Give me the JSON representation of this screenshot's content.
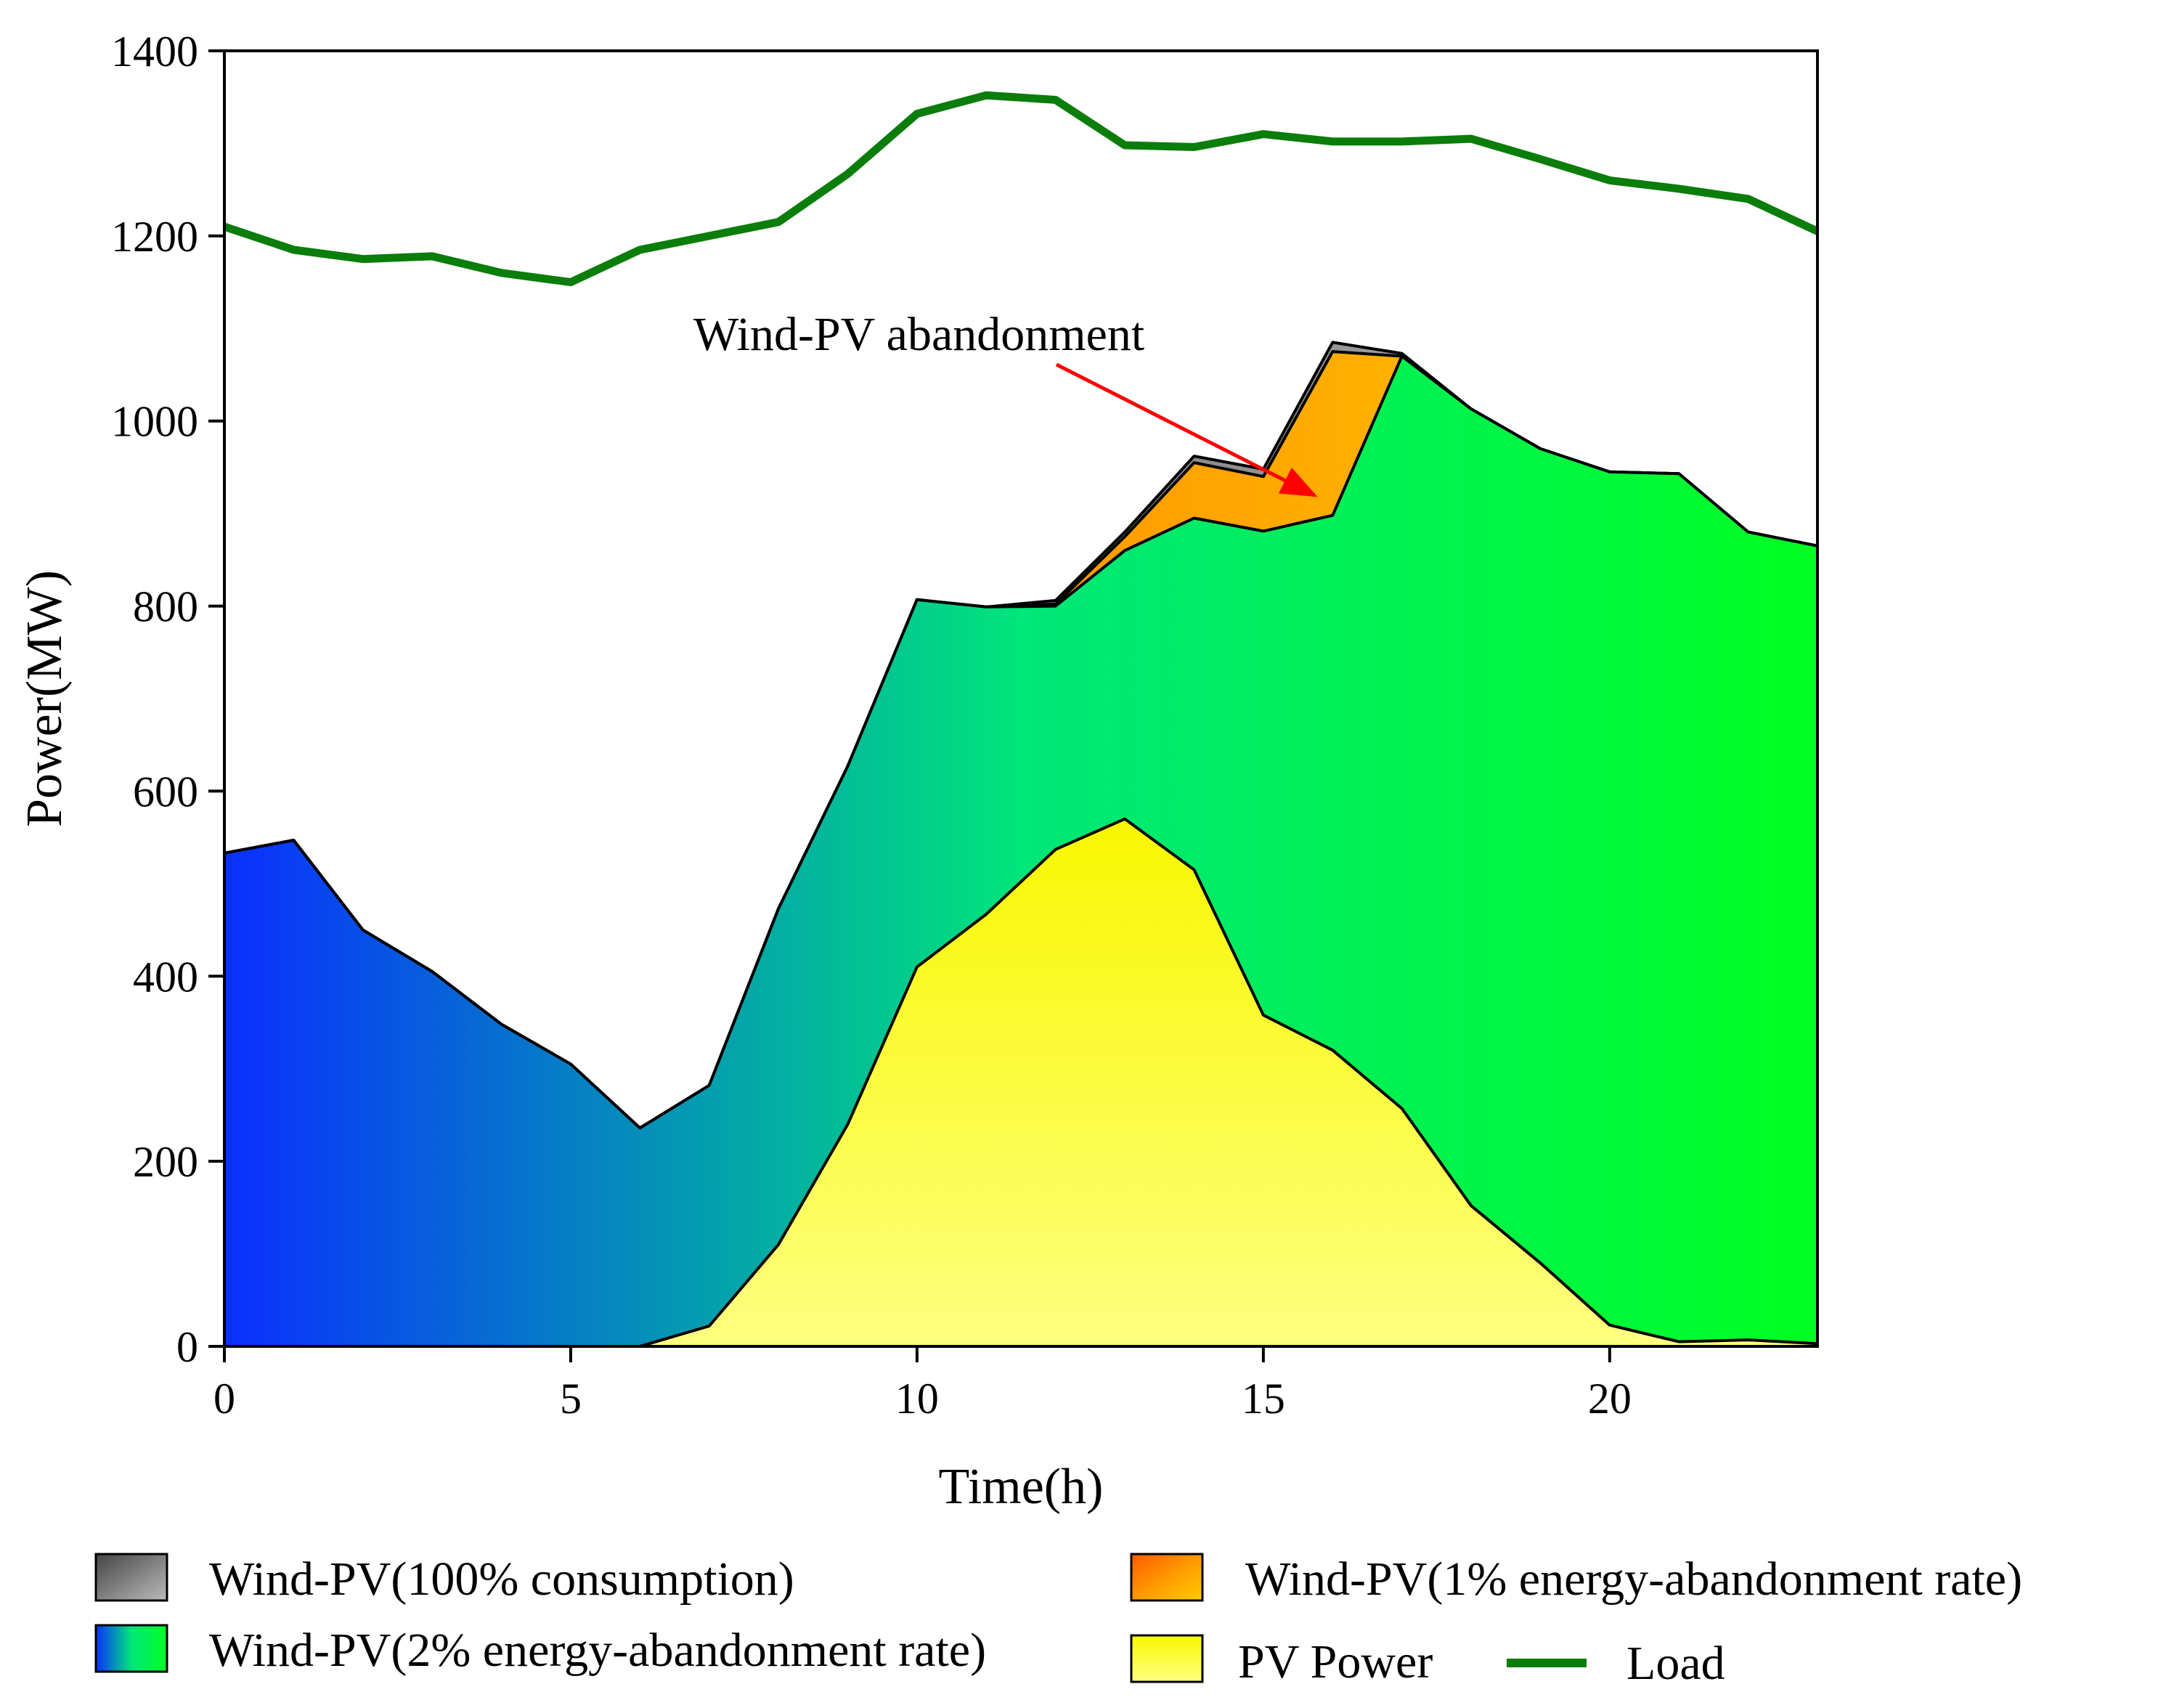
{
  "chart_data": {
    "type": "area",
    "xlabel": "Time(h)",
    "ylabel": "Power(MW)",
    "xlim": [
      0,
      23
    ],
    "ylim": [
      0,
      1400
    ],
    "xticks": [
      0,
      5,
      10,
      15,
      20
    ],
    "yticks": [
      0,
      200,
      400,
      600,
      800,
      1000,
      1200,
      1400
    ],
    "x": [
      0,
      1,
      2,
      3,
      4,
      5,
      6,
      7,
      8,
      9,
      10,
      11,
      12,
      13,
      14,
      15,
      16,
      17,
      18,
      19,
      20,
      21,
      22,
      23
    ],
    "series": [
      {
        "name": "PV Power",
        "key": "pv",
        "values": [
          0,
          0,
          0,
          0,
          0,
          0,
          0,
          22,
          110,
          240,
          410,
          467,
          537,
          570,
          515,
          358,
          320,
          257,
          152,
          90,
          23,
          5,
          7,
          3
        ],
        "colors": [
          "#f7f700",
          "#ffff80"
        ]
      },
      {
        "name": "Wind-PV(2% energy-abandonment rate)",
        "key": "wp2",
        "values": [
          533,
          547,
          450,
          405,
          348,
          305,
          236,
          282,
          473,
          627,
          807,
          799,
          800,
          860,
          895,
          881,
          898,
          1070,
          1013,
          970,
          945,
          943,
          880,
          865
        ],
        "colors": [
          "#0a2fff",
          "#00e67a",
          "#00ff22"
        ]
      },
      {
        "name": "Wind-PV(1% energy-abandonment rate)",
        "key": "wp1",
        "values": [
          533,
          547,
          450,
          405,
          348,
          305,
          236,
          282,
          473,
          627,
          807,
          799,
          802,
          875,
          955,
          940,
          1075,
          1070,
          1013,
          970,
          945,
          943,
          880,
          865
        ],
        "colors": [
          "#ff5a00",
          "#ff9800",
          "#ffcc00"
        ]
      },
      {
        "name": "Wind-PV(100% consumption)",
        "key": "wp100",
        "values": [
          533,
          547,
          450,
          405,
          348,
          305,
          236,
          282,
          473,
          627,
          807,
          799,
          806,
          880,
          962,
          948,
          1085,
          1073,
          1013,
          970,
          945,
          943,
          880,
          865
        ],
        "colors": [
          "#444444",
          "#bbbbbb"
        ]
      },
      {
        "name": "Load",
        "key": "load",
        "values": [
          1210,
          1185,
          1175,
          1178,
          1160,
          1150,
          1185,
          1200,
          1215,
          1267,
          1332,
          1352,
          1347,
          1298,
          1296,
          1310,
          1302,
          1302,
          1305,
          1283,
          1260,
          1251,
          1240,
          1205
        ],
        "color": "#0a7d0a"
      }
    ],
    "annotation": {
      "text": "Wind-PV abandonment",
      "x": 16,
      "y": 920
    },
    "legend": [
      {
        "label": "Wind-PV(100% consumption)",
        "key": "wp100"
      },
      {
        "label": "Wind-PV(1% energy-abandonment rate)",
        "key": "wp1"
      },
      {
        "label": "Wind-PV(2% energy-abandonment rate)",
        "key": "wp2"
      },
      {
        "label": "PV Power",
        "key": "pv"
      },
      {
        "label": "Load",
        "key": "load"
      }
    ],
    "legend_position": "bottom"
  }
}
